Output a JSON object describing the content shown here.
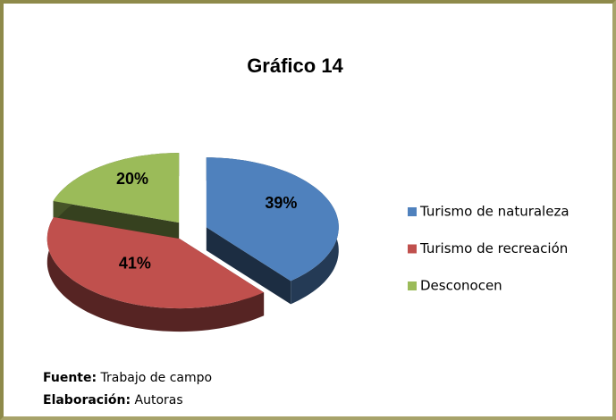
{
  "chart_data": {
    "type": "pie",
    "title": "Gráfico 14",
    "categories": [
      "Turismo de naturaleza",
      "Turismo de recreación",
      "Desconocen"
    ],
    "values": [
      39,
      41,
      20
    ],
    "value_labels": [
      "39%",
      "41%",
      "20%"
    ],
    "colors": [
      "#4f81bd",
      "#c0504d",
      "#9bbb59"
    ],
    "legend": "right"
  },
  "footer": {
    "source_label": "Fuente:",
    "source": "Trabajo de campo",
    "author_label": "Elaboración:",
    "author": "Autoras"
  }
}
